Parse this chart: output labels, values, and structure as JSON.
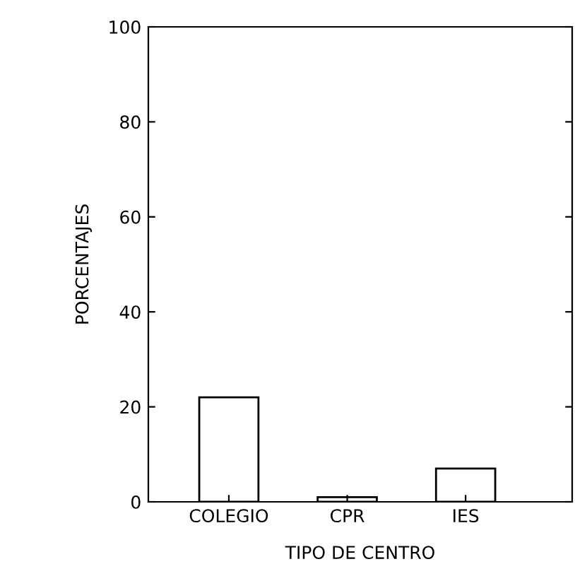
{
  "chart_data": {
    "type": "bar",
    "xlabel": "TIPO DE CENTRO",
    "ylabel": "PORCENTAJES",
    "categories": [
      "COLEGIO",
      "CPR",
      "IES"
    ],
    "values": [
      22,
      1,
      7
    ],
    "color": "#ffffff",
    "ylim": [
      0,
      100
    ],
    "yticks": [
      0,
      20,
      40,
      60,
      80,
      100
    ],
    "grid": false
  }
}
